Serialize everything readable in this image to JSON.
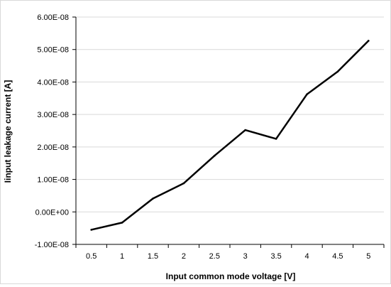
{
  "chart_data": {
    "type": "line",
    "title": "",
    "xlabel": "Input common mode voltage [V]",
    "ylabel": "Iinput leakage current [A]",
    "x": [
      0.5,
      1,
      1.5,
      2,
      2.5,
      3,
      3.5,
      4,
      4.5,
      5
    ],
    "x_tick_labels": [
      "0.5",
      "1",
      "1.5",
      "2",
      "2.5",
      "3",
      "3.5",
      "4",
      "4.5",
      "5"
    ],
    "ylim": [
      -1e-08,
      6e-08
    ],
    "y_ticks": [
      -1e-08,
      0,
      1e-08,
      2e-08,
      3e-08,
      4e-08,
      5e-08,
      6e-08
    ],
    "y_tick_labels": [
      "-1.00E-08",
      "0.00E+00",
      "1.00E-08",
      "2.00E-08",
      "3.00E-08",
      "4.00E-08",
      "5.00E-08",
      "6.00E-08"
    ],
    "grid": true,
    "legend": "none",
    "series": [
      {
        "values": [
          -5.5e-09,
          -3.3e-09,
          4.1e-09,
          8.8e-09,
          1.73e-08,
          2.52e-08,
          2.25e-08,
          3.62e-08,
          4.32e-08,
          5.27e-08
        ],
        "color": "#000000"
      }
    ]
  }
}
